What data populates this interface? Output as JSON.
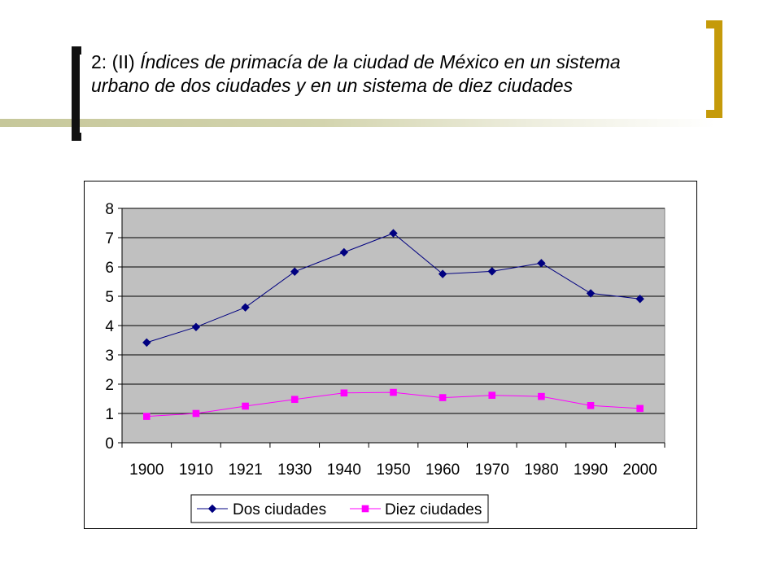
{
  "slide": {
    "title_prefix": "2: (II) ",
    "title_italic": "Índices de primacía de la ciudad de México en un sistema urbano de dos ciudades y en un sistema de diez ciudades",
    "accent_color": "#c59a0a",
    "bracket_color": "#111111"
  },
  "chart_data": {
    "type": "line",
    "categories": [
      "1900",
      "1910",
      "1921",
      "1930",
      "1940",
      "1950",
      "1960",
      "1970",
      "1980",
      "1990",
      "2000"
    ],
    "ylim": [
      0,
      8
    ],
    "yticks": [
      "0",
      "1",
      "2",
      "3",
      "4",
      "5",
      "6",
      "7",
      "8"
    ],
    "grid": true,
    "plot_background": "#c0c0c0",
    "legend_position": "bottom",
    "series": [
      {
        "name": "Dos ciudades",
        "color": "#000080",
        "marker": "diamond",
        "values": [
          3.42,
          3.95,
          4.62,
          5.84,
          6.5,
          7.15,
          5.76,
          5.85,
          6.13,
          5.1,
          4.91
        ]
      },
      {
        "name": "Diez ciudades",
        "color": "#ff00ff",
        "marker": "square",
        "values": [
          0.9,
          1.0,
          1.25,
          1.48,
          1.7,
          1.72,
          1.54,
          1.62,
          1.58,
          1.27,
          1.17
        ]
      }
    ]
  }
}
